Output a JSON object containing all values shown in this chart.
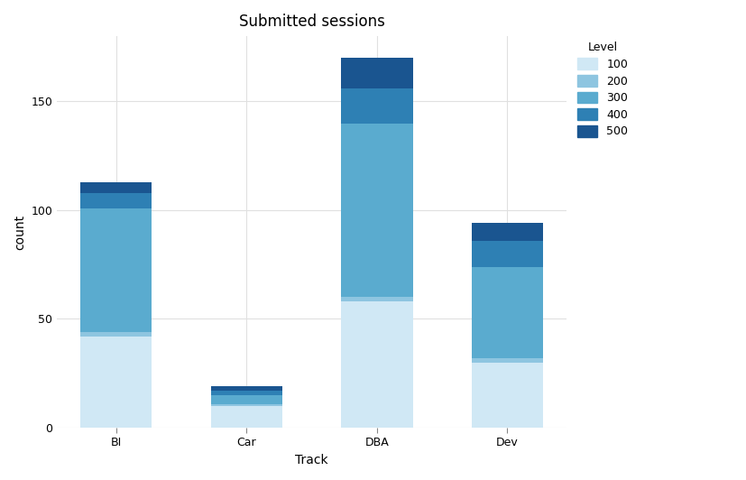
{
  "title": "Submitted sessions",
  "xlabel": "Track",
  "ylabel": "count",
  "categories": [
    "BI",
    "Car",
    "DBA",
    "Dev"
  ],
  "levels": [
    "100",
    "200",
    "300",
    "400",
    "500"
  ],
  "colors": [
    "#d0e8f5",
    "#8ec5e0",
    "#5aabcf",
    "#2e80b4",
    "#1a5590"
  ],
  "values": {
    "100": [
      42,
      10,
      58,
      30
    ],
    "200": [
      2,
      1,
      2,
      2
    ],
    "300": [
      57,
      4,
      80,
      42
    ],
    "400": [
      7,
      2,
      16,
      12
    ],
    "500": [
      5,
      2,
      14,
      8
    ]
  },
  "ylim": [
    0,
    180
  ],
  "yticks": [
    0,
    50,
    100,
    150
  ],
  "background_color": "#ffffff",
  "grid_color": "#e0e0e0",
  "title_fontsize": 12,
  "axis_fontsize": 10,
  "tick_fontsize": 9,
  "bar_width": 0.55,
  "legend_title": "Level",
  "figsize": [
    8.28,
    5.32
  ]
}
